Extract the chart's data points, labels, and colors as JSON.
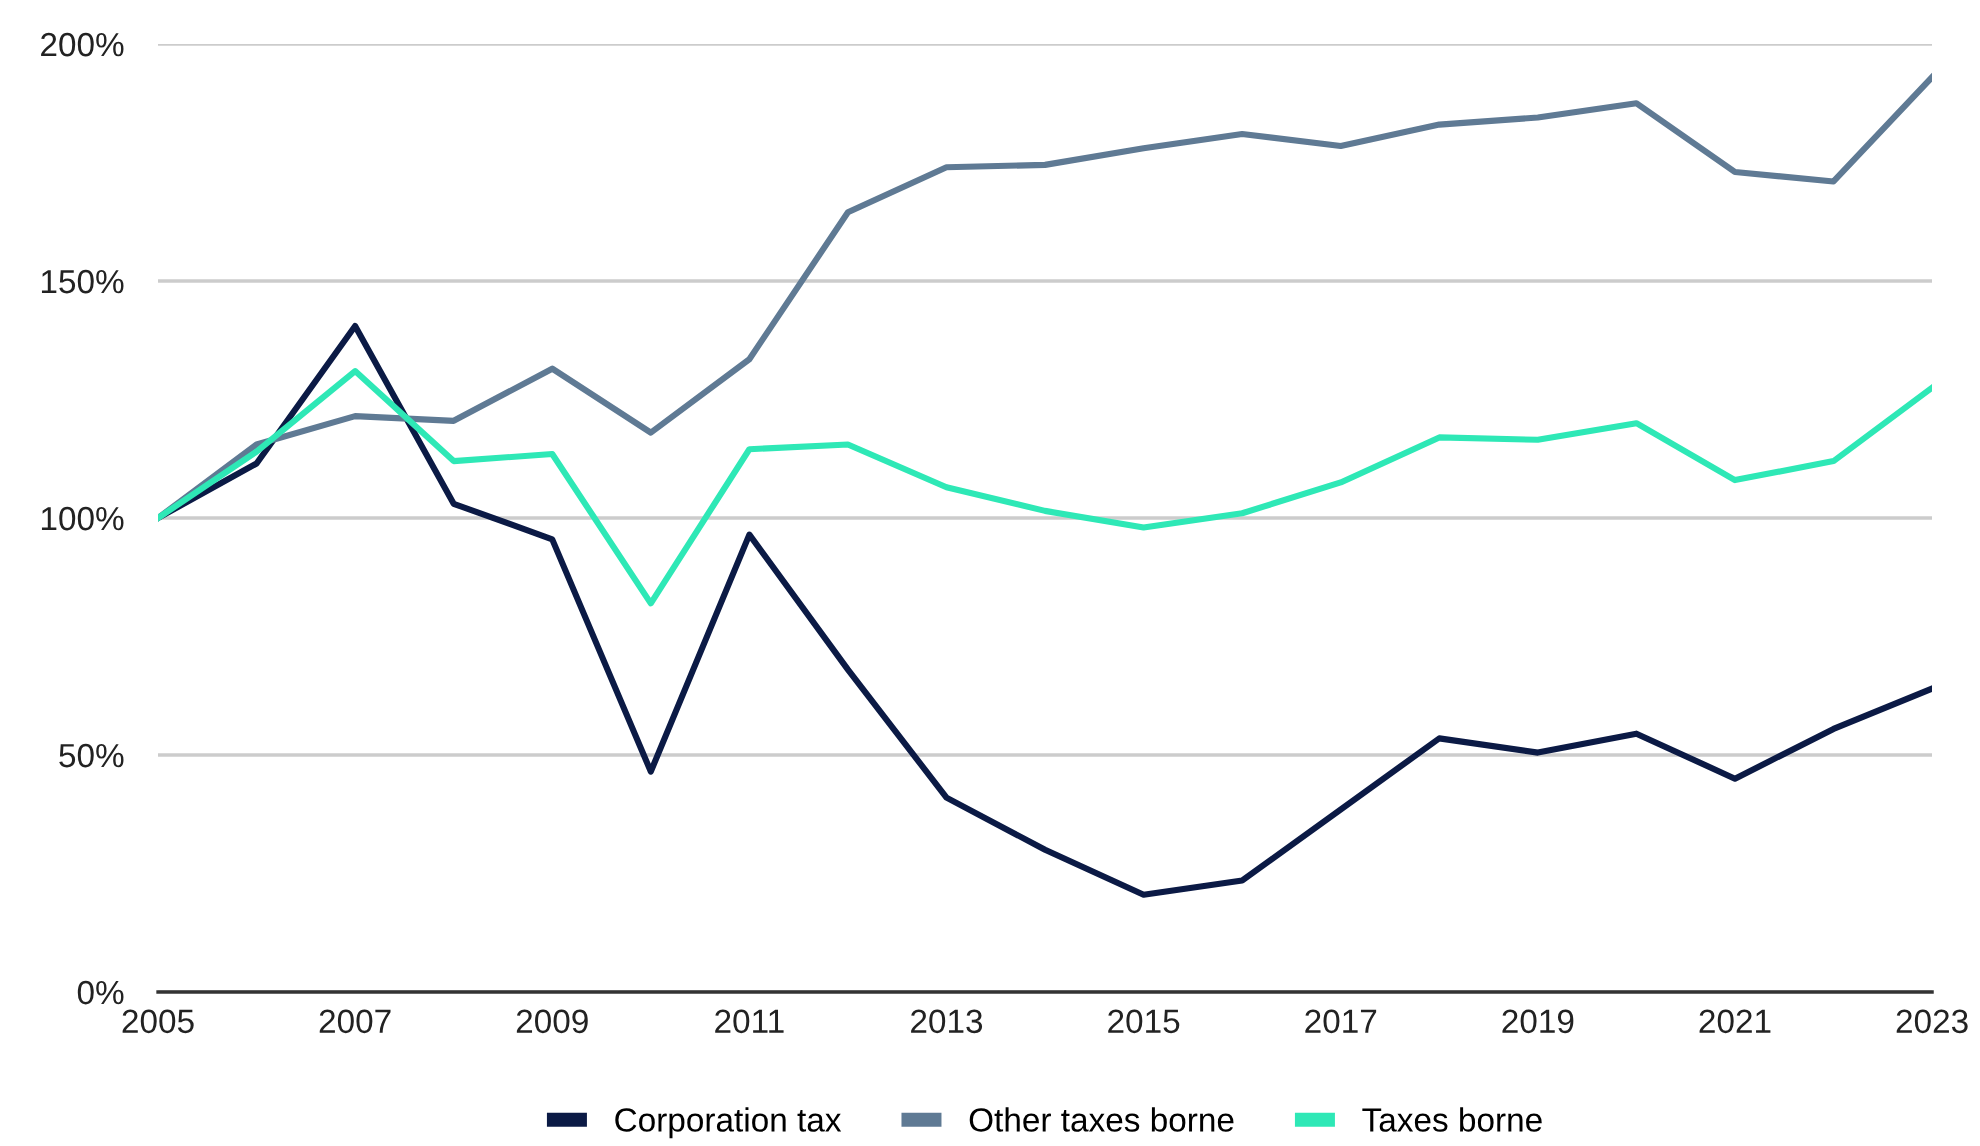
{
  "chart_data": {
    "type": "line",
    "x": [
      2005,
      2006,
      2007,
      2008,
      2009,
      2010,
      2011,
      2012,
      2013,
      2014,
      2015,
      2016,
      2017,
      2018,
      2019,
      2020,
      2021,
      2022,
      2023
    ],
    "series": [
      {
        "name": "Corporation tax",
        "color": "#0b1a45",
        "values": [
          100,
          111.5,
          140.5,
          103,
          95.5,
          46.5,
          96.5,
          68,
          41,
          30,
          20.5,
          23.5,
          38.5,
          53.5,
          50.5,
          54.5,
          45,
          55.5,
          64
        ]
      },
      {
        "name": "Other taxes borne",
        "color": "#5f7a94",
        "values": [
          100,
          115.5,
          121.5,
          120.5,
          131.5,
          118,
          133.5,
          164.5,
          174,
          174.5,
          178,
          181,
          178.5,
          183,
          184.5,
          187.5,
          173,
          171,
          193
        ]
      },
      {
        "name": "Taxes borne",
        "color": "#2ee8b6",
        "values": [
          100,
          114,
          131,
          112,
          113.5,
          82,
          114.5,
          115.5,
          106.5,
          101.5,
          98,
          101,
          107.5,
          117,
          116.5,
          120,
          108,
          112,
          127.5
        ]
      }
    ],
    "xlim": [
      2005,
      2023
    ],
    "xticks": [
      2005,
      2007,
      2009,
      2011,
      2013,
      2015,
      2017,
      2019,
      2021,
      2023
    ],
    "ylim": [
      0,
      200
    ],
    "yticks": [
      {
        "value": 0,
        "label": "0%"
      },
      {
        "value": 50,
        "label": "50%"
      },
      {
        "value": 100,
        "label": "100%"
      },
      {
        "value": 150,
        "label": "150%"
      },
      {
        "value": 200,
        "label": "200%"
      }
    ],
    "grid": "y",
    "legend": "bottom",
    "marker": "none",
    "line_style": "solid"
  }
}
